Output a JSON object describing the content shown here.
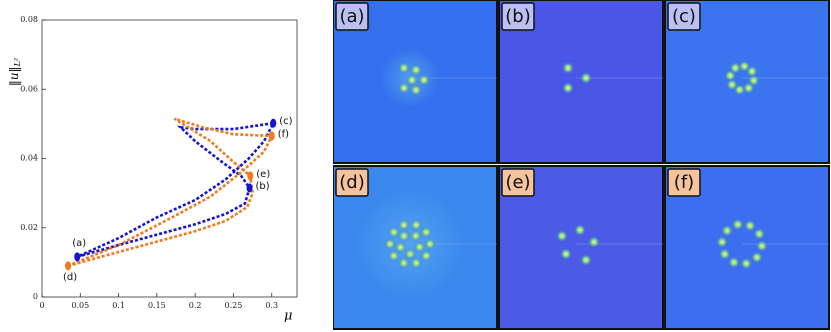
{
  "chart_data": {
    "type": "line",
    "ylabel": "‖u‖",
    "ylabel_sub": "L²",
    "xlabel": "μ",
    "xlim": [
      0,
      0.333
    ],
    "xticks": [
      0,
      0.05,
      0.1,
      0.15,
      0.2,
      0.25,
      0.3
    ],
    "ylim": [
      0,
      0.08
    ],
    "yticks": [
      0,
      0.02,
      0.04,
      0.06,
      0.08
    ],
    "series": [
      {
        "color": "#1414d2",
        "x": [
          0.046,
          0.1,
          0.15,
          0.2,
          0.24,
          0.265,
          0.271,
          0.26,
          0.235,
          0.2,
          0.181,
          0.2,
          0.25,
          0.302,
          0.29,
          0.27,
          0.24,
          0.2,
          0.15,
          0.1,
          0.046
        ],
        "values": [
          0.0116,
          0.015,
          0.018,
          0.021,
          0.024,
          0.027,
          0.0315,
          0.035,
          0.039,
          0.045,
          0.049,
          0.0485,
          0.0485,
          0.0502,
          0.045,
          0.04,
          0.034,
          0.028,
          0.023,
          0.017,
          0.0116
        ]
      },
      {
        "color": "#f07a1e",
        "x": [
          0.034,
          0.1,
          0.15,
          0.2,
          0.24,
          0.268,
          0.275,
          0.272,
          0.25,
          0.22,
          0.173,
          0.21,
          0.25,
          0.3,
          0.29,
          0.26,
          0.22,
          0.17,
          0.1,
          0.034
        ],
        "values": [
          0.009,
          0.013,
          0.016,
          0.019,
          0.022,
          0.026,
          0.03,
          0.035,
          0.039,
          0.045,
          0.0515,
          0.049,
          0.047,
          0.0465,
          0.042,
          0.036,
          0.029,
          0.023,
          0.015,
          0.009
        ]
      }
    ],
    "points": [
      {
        "label": "(a)",
        "x": 0.046,
        "y": 0.0116,
        "color": "#1414d2"
      },
      {
        "label": "(b)",
        "x": 0.271,
        "y": 0.0315,
        "color": "#1414d2"
      },
      {
        "label": "(c)",
        "x": 0.302,
        "y": 0.0502,
        "color": "#1414d2"
      },
      {
        "label": "(d)",
        "x": 0.034,
        "y": 0.009,
        "color": "#f07a1e"
      },
      {
        "label": "(e)",
        "x": 0.272,
        "y": 0.035,
        "color": "#f07a1e"
      },
      {
        "label": "(f)",
        "x": 0.3,
        "y": 0.0465,
        "color": "#f07a1e"
      }
    ]
  },
  "panels": [
    {
      "label": "(a)",
      "color": "#3470ee",
      "tag": "#bcbff2"
    },
    {
      "label": "(b)",
      "color": "#4a57e6",
      "tag": "#bcbff2"
    },
    {
      "label": "(c)",
      "color": "#3a74ee",
      "tag": "#bcbff2"
    },
    {
      "label": "(d)",
      "color": "#3a88ee",
      "tag": "#f6c49c"
    },
    {
      "label": "(e)",
      "color": "#4b5be5",
      "tag": "#f6c49c"
    },
    {
      "label": "(f)",
      "color": "#3d6ef0",
      "tag": "#f6c49c"
    }
  ]
}
